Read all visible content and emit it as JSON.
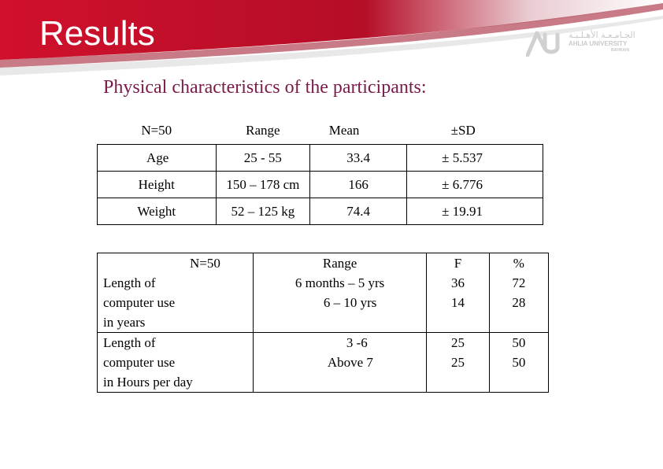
{
  "header": {
    "title": "Results",
    "logo_ar": "الجـامـعـة الأهـلـيـة",
    "logo_en": "AHLIA UNIVERSITY",
    "logo_location": "BAHRAIN"
  },
  "subtitle": "Physical characteristics of the participants:",
  "table1": {
    "headers": [
      "N=50",
      "Range",
      "Mean",
      "±SD"
    ],
    "rows": [
      [
        "Age",
        "25 - 55",
        "33.4",
        "± 5.537"
      ],
      [
        "Height",
        "150 – 178 cm",
        "166",
        "± 6.776"
      ],
      [
        "Weight",
        "52 – 125 kg",
        "74.4",
        "± 19.91"
      ]
    ]
  },
  "table2": {
    "headers": [
      "N=50",
      "Range",
      "F",
      "%"
    ],
    "rows": [
      {
        "label": [
          "Length of",
          "computer use",
          "in years"
        ],
        "range": [
          "6 months – 5 yrs",
          "6 – 10 yrs"
        ],
        "f": [
          "36",
          "14"
        ],
        "pct": [
          "72",
          "28"
        ]
      },
      {
        "label": [
          "Length of",
          "computer use",
          "in Hours per day"
        ],
        "range": [
          "3 -6",
          "Above 7"
        ],
        "f": [
          "25",
          "25"
        ],
        "pct": [
          "50",
          "50"
        ]
      }
    ]
  },
  "colors": {
    "banner_red": "#c8102e",
    "banner_dark": "#8a0c22",
    "subtitle": "#7a1a4a"
  }
}
